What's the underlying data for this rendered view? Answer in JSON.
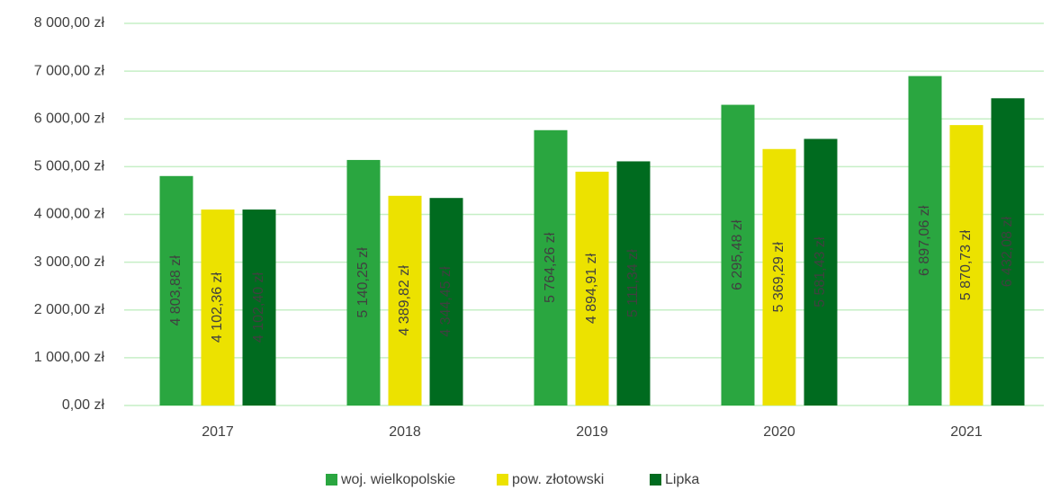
{
  "chart_data": {
    "type": "bar",
    "categories": [
      "2017",
      "2018",
      "2019",
      "2020",
      "2021"
    ],
    "series": [
      {
        "name": "woj. wielkopolskie",
        "color": "#2aa640",
        "values": [
          4803.88,
          5140.25,
          5764.26,
          6295.48,
          6897.06
        ],
        "value_labels": [
          "4 803,88 zł",
          "5 140,25 zł",
          "5 764,26 zł",
          "6 295,48 zł",
          "6 897,06 zł"
        ]
      },
      {
        "name": "pow. złotowski",
        "color": "#ece200",
        "values": [
          4102.36,
          4389.82,
          4894.91,
          5369.29,
          5870.73
        ],
        "value_labels": [
          "4 102,36 zł",
          "4 389,82 zł",
          "4 894,91 zł",
          "5 369,29 zł",
          "5 870,73 zł"
        ]
      },
      {
        "name": "Lipka",
        "color": "#006b1f",
        "values": [
          4102.4,
          4344.45,
          5111.34,
          5581.43,
          6432.08
        ],
        "value_labels": [
          "4 102,40 zł",
          "4 344,45 zł",
          "5 111,34 zł",
          "5 581,43 zł",
          "6 432,08 zł"
        ]
      }
    ],
    "ylim": [
      0,
      8000
    ],
    "yticks": [
      {
        "value": 0,
        "label": "0,00 zł"
      },
      {
        "value": 1000,
        "label": "1 000,00 zł"
      },
      {
        "value": 2000,
        "label": "2 000,00 zł"
      },
      {
        "value": 3000,
        "label": "3 000,00 zł"
      },
      {
        "value": 4000,
        "label": "4 000,00 zł"
      },
      {
        "value": 5000,
        "label": "5 000,00 zł"
      },
      {
        "value": 6000,
        "label": "6 000,00 zł"
      },
      {
        "value": 7000,
        "label": "7 000,00 zł"
      },
      {
        "value": 8000,
        "label": "8 000,00 zł"
      }
    ],
    "grid": true,
    "legend": "bottom"
  }
}
